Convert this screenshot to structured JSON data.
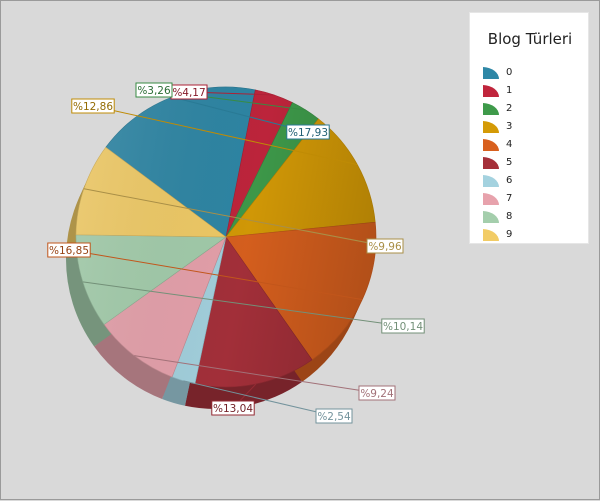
{
  "chart_data": {
    "type": "pie",
    "title": "Blog Türleri",
    "categories": [
      "0",
      "1",
      "2",
      "3",
      "4",
      "5",
      "6",
      "7",
      "8",
      "9"
    ],
    "values": [
      17.93,
      4.17,
      3.26,
      12.86,
      16.85,
      13.04,
      2.54,
      9.24,
      10.14,
      9.96
    ],
    "data_labels": [
      "%17,93",
      "%4,17",
      "%3,26",
      "%12,86",
      "%16,85",
      "%13,04",
      "%2,54",
      "%9,24",
      "%10,14",
      "%9,96"
    ],
    "colors": [
      "#2e87a6",
      "#c0253c",
      "#3e9a4a",
      "#d49a06",
      "#d8601e",
      "#a5303a",
      "#a4d2df",
      "#e7a2ac",
      "#a4ceac",
      "#f2cc66"
    ],
    "legend_position": "top-right",
    "style": "3d"
  }
}
